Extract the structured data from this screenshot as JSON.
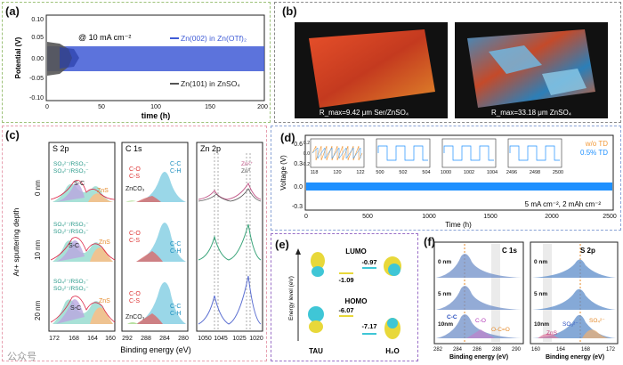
{
  "panels": {
    "a": {
      "label": "(a)",
      "condition": "@ 10 mA cm⁻²",
      "legend_blue": "Zn(002) in Zn(OTf)₂",
      "legend_gray": "Zn(101) in ZnSO₄",
      "ylabel": "Potential (V)",
      "xlabel": "time (h)",
      "yticks": [
        "0.10",
        "0.05",
        "0.00",
        "-0.05",
        "-0.10"
      ],
      "xticks": [
        "0",
        "50",
        "100",
        "150",
        "200"
      ]
    },
    "b": {
      "label": "(b)",
      "left_caption": "R_max=9.42 μm  Ser/ZnSO₄",
      "right_caption": "R_max=33.18 μm  ZnSO₄"
    },
    "c": {
      "label": "(c)",
      "col1_title": "S 2p",
      "col2_title": "C 1s",
      "col3_title": "Zn 2p",
      "ylabel": "Ar+ sputtering depth",
      "depths": [
        "0 nm",
        "10 nm",
        "20 nm"
      ],
      "xlabel": "Binding energy (eV)",
      "s2p_labels": [
        "SO₃²⁻/RSO₃⁻",
        "SO₄²⁻/RSO₃⁻",
        "S-C",
        "ZnS"
      ],
      "c1s_labels": [
        "C-O",
        "C-S",
        "ZnCO₃",
        "C-C",
        "C-H"
      ],
      "zn_labels": [
        "Zn²⁺",
        "Zn⁰"
      ],
      "s2p_ticks": [
        "172",
        "168",
        "164",
        "160"
      ],
      "c1s_ticks": [
        "292",
        "288",
        "284",
        "280"
      ],
      "zn_ticks": [
        "1050",
        "1045",
        "1025",
        "1020"
      ]
    },
    "d": {
      "label": "(d)",
      "ylabel": "Voltage (V)",
      "xlabel": "Time (h)",
      "yticks": [
        "0.6",
        "0.3",
        "0.0",
        "-0.3"
      ],
      "xticks": [
        "0",
        "500",
        "1000",
        "1500",
        "2000",
        "2500"
      ],
      "legend_wo": "w/o TD",
      "legend_with": "0.5% TD",
      "condition": "5 mA cm⁻², 2 mAh cm⁻²",
      "insets": [
        {
          "ticks": [
            "118",
            "120",
            "122"
          ]
        },
        {
          "ticks": [
            "500",
            "502",
            "504"
          ]
        },
        {
          "ticks": [
            "1000",
            "1002",
            "1004"
          ]
        },
        {
          "ticks": [
            "2496",
            "2498",
            "2500"
          ]
        }
      ],
      "inset_yticks": [
        "0.2",
        "0.0",
        "-0.2"
      ]
    },
    "e": {
      "label": "(e)",
      "lumo": "LUMO",
      "homo": "HOMO",
      "ylabel": "Energy level (eV)",
      "lumo_tau": "-1.09",
      "lumo_h2o": "-0.97",
      "homo_tau": "-6.07",
      "homo_h2o": "-7.17",
      "mol_left": "TAU",
      "mol_right": "H₂O"
    },
    "f": {
      "label": "(f)",
      "left_title": "C 1s",
      "right_title": "S 2p",
      "depths": [
        "0 nm",
        "5 nm",
        "10nm"
      ],
      "left_labels": [
        "C-C",
        "C-O",
        "O-C=O"
      ],
      "right_labels": [
        "ZnS",
        "SO₃²⁻",
        "SO₄²⁻"
      ],
      "xlabel": "Binding energy (eV)",
      "left_ticks": [
        "282",
        "284",
        "286",
        "288",
        "290"
      ],
      "right_ticks": [
        "160",
        "164",
        "168",
        "172"
      ]
    }
  },
  "watermark": "公众号",
  "colors": {
    "blue": "#3f5bd6",
    "lightblue": "#1e90ff",
    "gray": "#555555",
    "orange": "#f29a3a",
    "teal": "#7fd0c8",
    "pink": "#e68aa0",
    "red": "#d94a4a"
  }
}
